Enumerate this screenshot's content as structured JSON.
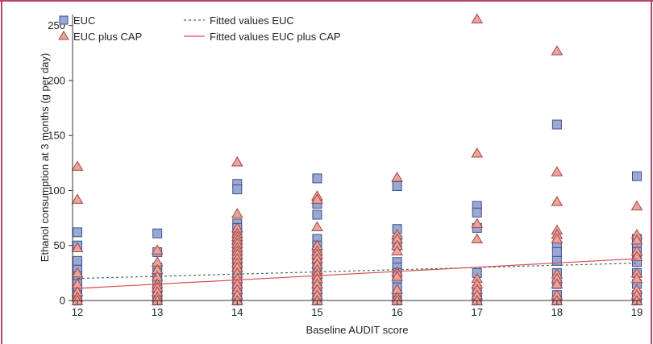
{
  "chart_data": {
    "type": "scatter",
    "title": "",
    "xlabel": "Baseline AUDIT score",
    "ylabel": "Ethanol consumption at 3 months (g per day)",
    "xlim": [
      12,
      19
    ],
    "ylim": [
      0,
      260
    ],
    "xticks": [
      12,
      13,
      14,
      15,
      16,
      17,
      18,
      19
    ],
    "yticks": [
      0,
      50,
      100,
      150,
      200,
      250
    ],
    "grid": false,
    "legend_position": "top-left",
    "colors": {
      "frame": "#b6426e",
      "axis": "#333333",
      "euc_fill": "#9aa8d4",
      "euc_stroke": "#3d4f8f",
      "cap_fill": "#e8a49e",
      "cap_stroke": "#a8453f",
      "fit_euc": "#3b6f6a",
      "fit_cap": "#d94d55"
    },
    "series": [
      {
        "name": "EUC",
        "marker": "square",
        "points": [
          [
            12,
            62
          ],
          [
            12,
            50
          ],
          [
            12,
            36
          ],
          [
            12,
            28
          ],
          [
            12,
            22
          ],
          [
            12,
            15
          ],
          [
            12,
            10
          ],
          [
            12,
            5
          ],
          [
            12,
            2
          ],
          [
            12,
            0
          ],
          [
            13,
            61
          ],
          [
            13,
            44
          ],
          [
            13,
            30
          ],
          [
            13,
            25
          ],
          [
            13,
            20
          ],
          [
            13,
            15
          ],
          [
            13,
            10
          ],
          [
            13,
            5
          ],
          [
            13,
            2
          ],
          [
            13,
            0
          ],
          [
            14,
            106
          ],
          [
            14,
            101
          ],
          [
            14,
            70
          ],
          [
            14,
            66
          ],
          [
            14,
            61
          ],
          [
            14,
            55
          ],
          [
            14,
            50
          ],
          [
            14,
            45
          ],
          [
            14,
            40
          ],
          [
            14,
            35
          ],
          [
            14,
            30
          ],
          [
            14,
            25
          ],
          [
            14,
            20
          ],
          [
            14,
            15
          ],
          [
            14,
            10
          ],
          [
            14,
            5
          ],
          [
            14,
            0
          ],
          [
            15,
            111
          ],
          [
            15,
            88
          ],
          [
            15,
            78
          ],
          [
            15,
            56
          ],
          [
            15,
            50
          ],
          [
            15,
            45
          ],
          [
            15,
            40
          ],
          [
            15,
            35
          ],
          [
            15,
            30
          ],
          [
            15,
            25
          ],
          [
            15,
            20
          ],
          [
            15,
            15
          ],
          [
            15,
            10
          ],
          [
            15,
            5
          ],
          [
            15,
            0
          ],
          [
            16,
            104
          ],
          [
            16,
            65
          ],
          [
            16,
            55
          ],
          [
            16,
            50
          ],
          [
            16,
            35
          ],
          [
            16,
            30
          ],
          [
            16,
            25
          ],
          [
            16,
            20
          ],
          [
            16,
            12
          ],
          [
            16,
            5
          ],
          [
            16,
            0
          ],
          [
            17,
            86
          ],
          [
            17,
            80
          ],
          [
            17,
            66
          ],
          [
            17,
            25
          ],
          [
            17,
            10
          ],
          [
            17,
            3
          ],
          [
            17,
            0
          ],
          [
            18,
            160
          ],
          [
            18,
            50
          ],
          [
            18,
            44
          ],
          [
            18,
            36
          ],
          [
            18,
            25
          ],
          [
            18,
            15
          ],
          [
            18,
            5
          ],
          [
            18,
            0
          ],
          [
            19,
            113
          ],
          [
            19,
            56
          ],
          [
            19,
            50
          ],
          [
            19,
            44
          ],
          [
            19,
            35
          ],
          [
            19,
            25
          ],
          [
            19,
            15
          ],
          [
            19,
            5
          ],
          [
            19,
            0
          ]
        ]
      },
      {
        "name": "EUC plus CAP",
        "marker": "triangle",
        "points": [
          [
            12,
            122
          ],
          [
            12,
            92
          ],
          [
            12,
            48
          ],
          [
            12,
            25
          ],
          [
            12,
            15
          ],
          [
            12,
            8
          ],
          [
            12,
            3
          ],
          [
            12,
            0
          ],
          [
            13,
            46
          ],
          [
            13,
            35
          ],
          [
            13,
            28
          ],
          [
            13,
            22
          ],
          [
            13,
            15
          ],
          [
            13,
            12
          ],
          [
            13,
            8
          ],
          [
            13,
            3
          ],
          [
            13,
            0
          ],
          [
            14,
            126
          ],
          [
            14,
            79
          ],
          [
            14,
            66
          ],
          [
            14,
            61
          ],
          [
            14,
            58
          ],
          [
            14,
            55
          ],
          [
            14,
            52
          ],
          [
            14,
            48
          ],
          [
            14,
            45
          ],
          [
            14,
            42
          ],
          [
            14,
            38
          ],
          [
            14,
            34
          ],
          [
            14,
            30
          ],
          [
            14,
            25
          ],
          [
            14,
            20
          ],
          [
            14,
            15
          ],
          [
            14,
            10
          ],
          [
            14,
            5
          ],
          [
            14,
            0
          ],
          [
            15,
            95
          ],
          [
            15,
            92
          ],
          [
            15,
            67
          ],
          [
            15,
            50
          ],
          [
            15,
            45
          ],
          [
            15,
            42
          ],
          [
            15,
            38
          ],
          [
            15,
            33
          ],
          [
            15,
            28
          ],
          [
            15,
            24
          ],
          [
            15,
            20
          ],
          [
            15,
            15
          ],
          [
            15,
            10
          ],
          [
            15,
            5
          ],
          [
            15,
            0
          ],
          [
            16,
            112
          ],
          [
            16,
            60
          ],
          [
            16,
            56
          ],
          [
            16,
            50
          ],
          [
            16,
            45
          ],
          [
            16,
            26
          ],
          [
            16,
            22
          ],
          [
            16,
            10
          ],
          [
            16,
            3
          ],
          [
            16,
            0
          ],
          [
            17,
            256
          ],
          [
            17,
            134
          ],
          [
            17,
            70
          ],
          [
            17,
            56
          ],
          [
            17,
            20
          ],
          [
            17,
            15
          ],
          [
            17,
            10
          ],
          [
            17,
            5
          ],
          [
            17,
            0
          ],
          [
            18,
            227
          ],
          [
            18,
            117
          ],
          [
            18,
            90
          ],
          [
            18,
            64
          ],
          [
            18,
            60
          ],
          [
            18,
            56
          ],
          [
            18,
            24
          ],
          [
            18,
            20
          ],
          [
            18,
            15
          ],
          [
            18,
            5
          ],
          [
            18,
            0
          ],
          [
            19,
            86
          ],
          [
            19,
            60
          ],
          [
            19,
            55
          ],
          [
            19,
            45
          ],
          [
            19,
            40
          ],
          [
            19,
            25
          ],
          [
            19,
            20
          ],
          [
            19,
            10
          ],
          [
            19,
            5
          ],
          [
            19,
            0
          ]
        ]
      }
    ],
    "fits": [
      {
        "name": "Fitted values EUC",
        "style": "dotted",
        "from": [
          12,
          20
        ],
        "to": [
          19,
          34
        ]
      },
      {
        "name": "Fitted values EUC plus CAP",
        "style": "solid",
        "from": [
          12,
          11
        ],
        "to": [
          19,
          38
        ]
      }
    ]
  }
}
